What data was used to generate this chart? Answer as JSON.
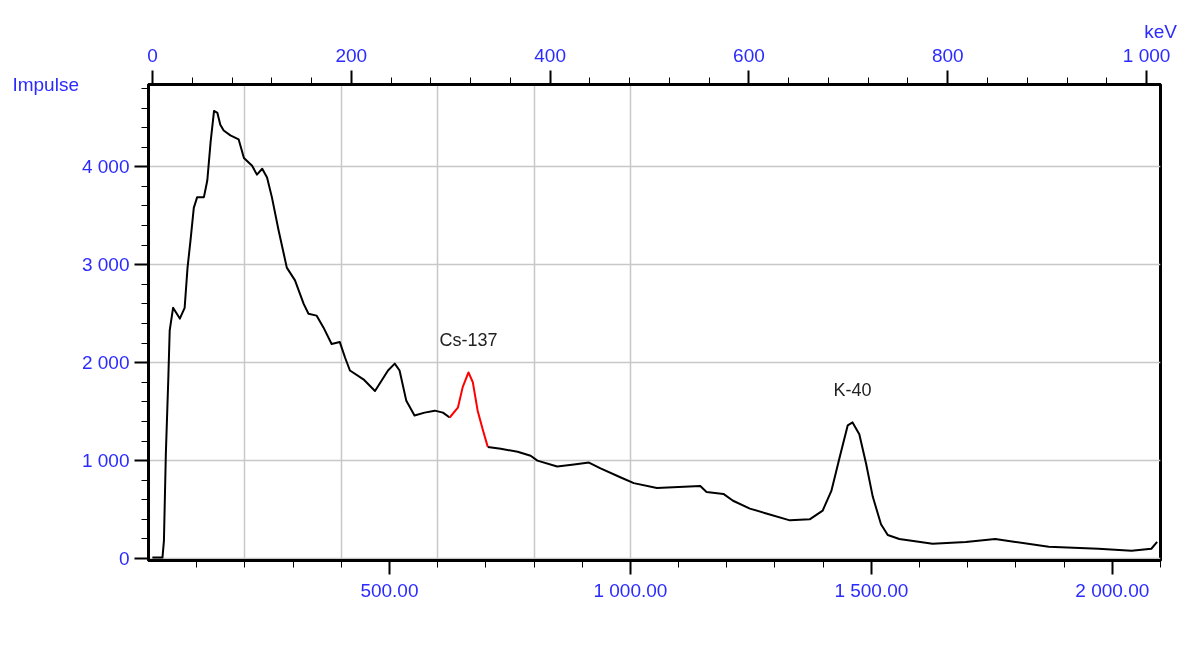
{
  "chart_data": {
    "type": "line",
    "xlabel": "keV",
    "ylabel": "Impulse",
    "xlim": [
      0,
      2100
    ],
    "ylim": [
      -20,
      4840
    ],
    "x2lim": [
      -4,
      1014
    ],
    "xticks": [
      {
        "value": 100,
        "label": null
      },
      {
        "value": 200,
        "label": null
      },
      {
        "value": 300,
        "label": null
      },
      {
        "value": 400,
        "label": null
      },
      {
        "value": 500,
        "label": "500.00"
      },
      {
        "value": 600,
        "label": null
      },
      {
        "value": 700,
        "label": null
      },
      {
        "value": 800,
        "label": null
      },
      {
        "value": 900,
        "label": null
      },
      {
        "value": 1000,
        "label": "1 000.00"
      },
      {
        "value": 1100,
        "label": null
      },
      {
        "value": 1200,
        "label": null
      },
      {
        "value": 1300,
        "label": null
      },
      {
        "value": 1400,
        "label": null
      },
      {
        "value": 1500,
        "label": "1 500.00"
      },
      {
        "value": 1600,
        "label": null
      },
      {
        "value": 1700,
        "label": null
      },
      {
        "value": 1800,
        "label": null
      },
      {
        "value": 1900,
        "label": null
      },
      {
        "value": 2000,
        "label": "2 000.00"
      },
      {
        "value": 2100,
        "label": null
      }
    ],
    "x2ticks": [
      0,
      {
        "value": 40,
        "label": null
      },
      {
        "value": 80,
        "label": null
      },
      {
        "value": 120,
        "label": null
      },
      {
        "value": 160,
        "label": null
      },
      200,
      {
        "value": 240,
        "label": null
      },
      {
        "value": 280,
        "label": null
      },
      {
        "value": 320,
        "label": null
      },
      {
        "value": 360,
        "label": null
      },
      400,
      {
        "value": 440,
        "label": null
      },
      {
        "value": 480,
        "label": null
      },
      {
        "value": 520,
        "label": null
      },
      {
        "value": 560,
        "label": null
      },
      600,
      {
        "value": 640,
        "label": null
      },
      {
        "value": 680,
        "label": null
      },
      {
        "value": 720,
        "label": null
      },
      {
        "value": 760,
        "label": null
      },
      800,
      {
        "value": 840,
        "label": null
      },
      {
        "value": 880,
        "label": null
      },
      {
        "value": 920,
        "label": null
      },
      {
        "value": 960,
        "label": null
      },
      {
        "value": 1000,
        "label": "1 000"
      }
    ],
    "yticks": [
      0,
      {
        "value": 200,
        "label": null
      },
      {
        "value": 400,
        "label": null
      },
      {
        "value": 600,
        "label": null
      },
      {
        "value": 800,
        "label": null
      },
      {
        "value": 1000,
        "label": "1 000"
      },
      {
        "value": 1200,
        "label": null
      },
      {
        "value": 1400,
        "label": null
      },
      {
        "value": 1600,
        "label": null
      },
      {
        "value": 1800,
        "label": null
      },
      {
        "value": 2000,
        "label": "2 000"
      },
      {
        "value": 2200,
        "label": null
      },
      {
        "value": 2400,
        "label": null
      },
      {
        "value": 2600,
        "label": null
      },
      {
        "value": 2800,
        "label": null
      },
      {
        "value": 3000,
        "label": "3 000"
      },
      {
        "value": 3200,
        "label": null
      },
      {
        "value": 3400,
        "label": null
      },
      {
        "value": 3600,
        "label": null
      },
      {
        "value": 3800,
        "label": null
      },
      {
        "value": 4000,
        "label": "4 000"
      },
      {
        "value": 4200,
        "label": null
      },
      {
        "value": 4400,
        "label": null
      },
      {
        "value": 4600,
        "label": null
      },
      {
        "value": 4800,
        "label": null
      }
    ],
    "grid": true,
    "marker": "none",
    "line_style": "solid",
    "annotations": [
      {
        "text": "Cs-137",
        "x": 664,
        "y": 1900
      },
      {
        "text": "K-40",
        "x": 1461,
        "y": 1390
      }
    ],
    "series": [
      {
        "color": "#000000",
        "x": [
          8,
          29,
          32,
          36,
          41,
          44,
          51,
          65,
          75,
          81,
          87,
          94,
          101,
          115,
          122,
          129,
          136,
          143,
          149,
          156,
          170,
          187,
          198,
          215,
          225,
          236,
          246,
          256,
          270,
          287,
          304,
          322,
          332,
          349,
          363,
          380,
          397,
          408,
          418,
          446,
          470,
          497,
          511,
          521,
          535,
          552,
          573,
          594,
          611,
          625,
          664,
          704,
          731,
          766,
          793,
          807,
          848,
          883,
          914,
          938,
          979,
          1007,
          1055,
          1145,
          1158,
          1193,
          1213,
          1248,
          1282,
          1331,
          1372,
          1399,
          1417,
          1434,
          1451,
          1461,
          1475,
          1489,
          1503,
          1520,
          1534,
          1558,
          1627,
          1696,
          1757,
          1799,
          1868,
          1971,
          2040,
          2081,
          2093
        ],
        "values": [
          10,
          10,
          180,
          1070,
          1820,
          2330,
          2560,
          2450,
          2560,
          2970,
          3240,
          3580,
          3690,
          3690,
          3860,
          4260,
          4570,
          4550,
          4430,
          4370,
          4320,
          4280,
          4090,
          4010,
          3920,
          3980,
          3890,
          3690,
          3350,
          2970,
          2840,
          2600,
          2500,
          2480,
          2360,
          2190,
          2210,
          2050,
          1920,
          1830,
          1710,
          1920,
          1990,
          1920,
          1610,
          1460,
          1490,
          1510,
          1490,
          1440,
          null,
          1140,
          1120,
          1090,
          1050,
          1000,
          940,
          960,
          980,
          920,
          830,
          770,
          720,
          740,
          680,
          660,
          590,
          510,
          460,
          390,
          400,
          490,
          690,
          1030,
          1360,
          1390,
          1270,
          970,
          630,
          350,
          240,
          200,
          150,
          170,
          200,
          170,
          120,
          100,
          80,
          100,
          170
        ]
      },
      {
        "color": "#ff0000",
        "x": [
          625,
          642,
          652,
          664,
          673,
          683,
          694,
          704
        ],
        "values": [
          1440,
          1540,
          1750,
          1900,
          1800,
          1510,
          1310,
          1140
        ]
      }
    ]
  }
}
